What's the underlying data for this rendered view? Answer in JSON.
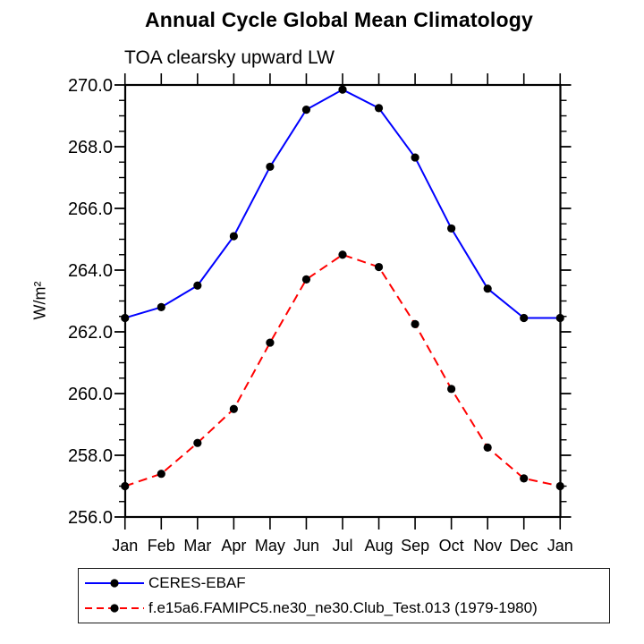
{
  "chart_data": {
    "type": "line",
    "title": "Annual Cycle Global Mean Climatology",
    "subtitle": "TOA clearsky upward LW",
    "ylabel": "W/m²",
    "xlabel": "",
    "categories": [
      "Jan",
      "Feb",
      "Mar",
      "Apr",
      "May",
      "Jun",
      "Jul",
      "Aug",
      "Sep",
      "Oct",
      "Nov",
      "Dec",
      "Jan"
    ],
    "ylim": [
      256.0,
      270.0
    ],
    "yticks": [
      256.0,
      258.0,
      260.0,
      262.0,
      264.0,
      266.0,
      268.0,
      270.0
    ],
    "ytick_labels": [
      "256.0",
      "258.0",
      "260.0",
      "262.0",
      "264.0",
      "266.0",
      "268.0",
      "270.0"
    ],
    "ytick_minor_step": 0.5,
    "ytick_major_step": 2.0,
    "grid": false,
    "legend_position": "below-left",
    "frame_color": "#000000",
    "marker_shape": "filled-circle",
    "series": [
      {
        "name": "CERES-EBAF",
        "color": "#0000ff",
        "style": "solid",
        "marker_color": "#000000",
        "values": [
          262.45,
          262.8,
          263.5,
          265.1,
          267.35,
          269.2,
          269.85,
          269.25,
          267.65,
          265.35,
          263.4,
          262.45,
          262.45
        ]
      },
      {
        "name": "f.e15a6.FAMIPC5.ne30_ne30.Club_Test.013 (1979-1980)",
        "color": "#ff0000",
        "style": "dashed",
        "marker_color": "#000000",
        "values": [
          257.0,
          257.4,
          258.4,
          259.5,
          261.65,
          263.7,
          264.5,
          264.1,
          262.25,
          260.15,
          258.25,
          257.25,
          257.0
        ]
      }
    ]
  }
}
